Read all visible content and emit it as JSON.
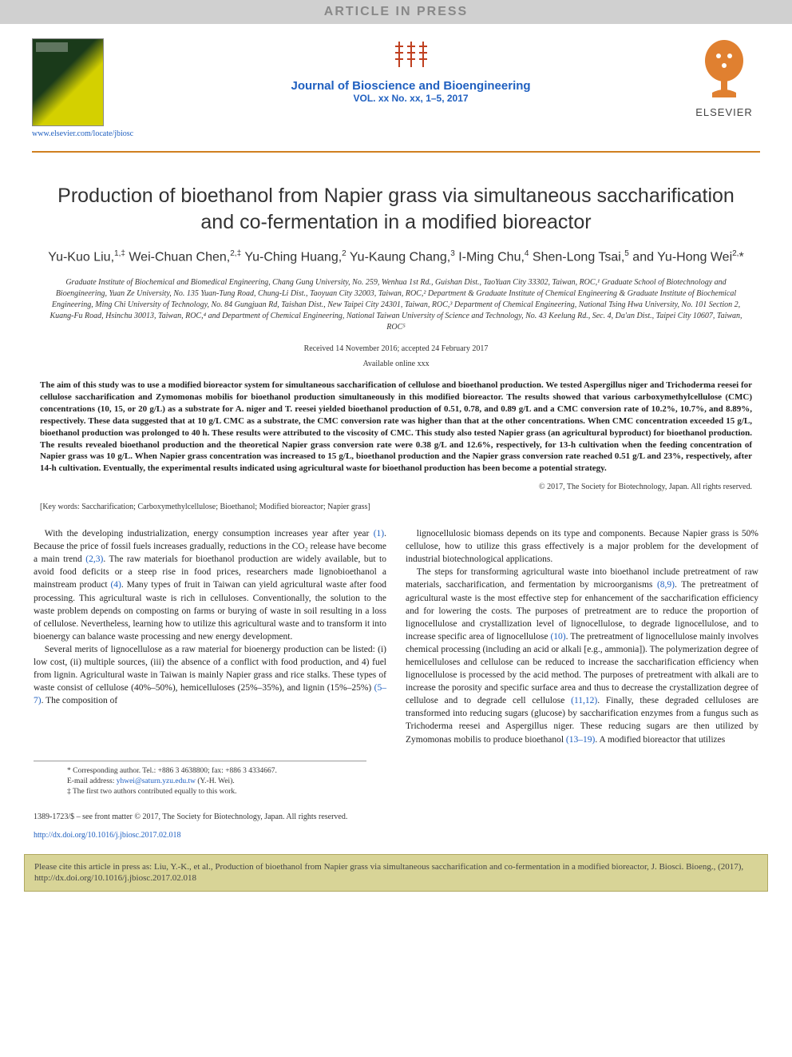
{
  "banner": "ARTICLE IN PRESS",
  "header": {
    "cover_link": "www.elsevier.com/locate/jbiosc",
    "journal_name": "Journal of Bioscience and Bioengineering",
    "journal_vol": "VOL. xx No. xx, 1–5, 2017",
    "publisher": "ELSEVIER"
  },
  "title": "Production of bioethanol from Napier grass via simultaneous saccharification and co-fermentation in a modified bioreactor",
  "authors_html": "Yu-Kuo Liu,<sup>1,‡</sup> Wei-Chuan Chen,<sup>2,‡</sup> Yu-Ching Huang,<sup>2</sup> Yu-Kaung Chang,<sup>3</sup> I-Ming Chu,<sup>4</sup> Shen-Long Tsai,<sup>5</sup> and Yu-Hong Wei<sup>2,</sup>*",
  "affiliations": "Graduate Institute of Biochemical and Biomedical Engineering, Chang Gung University, No. 259, Wenhua 1st Rd., Guishan Dist., TaoYuan City 33302, Taiwan, ROC,¹ Graduate School of Biotechnology and Bioengineering, Yuan Ze University, No. 135 Yuan-Tung Road, Chung-Li Dist., Taoyuan City 32003, Taiwan, ROC,² Department & Graduate Institute of Chemical Engineering & Graduate Institute of Biochemical Engineering, Ming Chi University of Technology, No. 84 Gungjuan Rd, Taishan Dist., New Taipei City 24301, Taiwan, ROC,³ Department of Chemical Engineering, National Tsing Hwa University, No. 101 Section 2, Kuang-Fu Road, Hsinchu 30013, Taiwan, ROC,⁴ and Department of Chemical Engineering, National Taiwan University of Science and Technology, No. 43 Keelung Rd., Sec. 4, Da'an Dist., Taipei City 10607, Taiwan, ROC⁵",
  "dates": {
    "received": "Received 14 November 2016; accepted 24 February 2017",
    "available": "Available online xxx"
  },
  "abstract": "The aim of this study was to use a modified bioreactor system for simultaneous saccharification of cellulose and bioethanol production. We tested Aspergillus niger and Trichoderma reesei for cellulose saccharification and Zymomonas mobilis for bioethanol production simultaneously in this modified bioreactor. The results showed that various carboxymethylcellulose (CMC) concentrations (10, 15, or 20 g/L) as a substrate for A. niger and T. reesei yielded bioethanol production of 0.51, 0.78, and 0.89 g/L and a CMC conversion rate of 10.2%, 10.7%, and 8.89%, respectively. These data suggested that at 10 g/L CMC as a substrate, the CMC conversion rate was higher than that at the other concentrations. When CMC concentration exceeded 15 g/L, bioethanol production was prolonged to 40 h. These results were attributed to the viscosity of CMC. This study also tested Napier grass (an agricultural byproduct) for bioethanol production. The results revealed bioethanol production and the theoretical Napier grass conversion rate were 0.38 g/L and 12.6%, respectively, for 13-h cultivation when the feeding concentration of Napier grass was 10 g/L. When Napier grass concentration was increased to 15 g/L, bioethanol production and the Napier grass conversion rate reached 0.51 g/L and 23%, respectively, after 14-h cultivation. Eventually, the experimental results indicated using agricultural waste for bioethanol production has been become a potential strategy.",
  "copyright": "© 2017, The Society for Biotechnology, Japan. All rights reserved.",
  "keywords": "[Key words: Saccharification; Carboxymethylcellulose; Bioethanol; Modified bioreactor; Napier grass]",
  "body": {
    "left": [
      "With the developing industrialization, energy consumption increases year after year (1). Because the price of fossil fuels increases gradually, reductions in the CO₂ release have become a main trend (2,3). The raw materials for bioethanol production are widely available, but to avoid food deficits or a steep rise in food prices, researchers made lignobioethanol a mainstream product (4). Many types of fruit in Taiwan can yield agricultural waste after food processing. This agricultural waste is rich in celluloses. Conventionally, the solution to the waste problem depends on composting on farms or burying of waste in soil resulting in a loss of cellulose. Nevertheless, learning how to utilize this agricultural waste and to transform it into bioenergy can balance waste processing and new energy development.",
      "Several merits of lignocellulose as a raw material for bioenergy production can be listed: (i) low cost, (ii) multiple sources, (iii) the absence of a conflict with food production, and 4) fuel from lignin. Agricultural waste in Taiwan is mainly Napier grass and rice stalks. These types of waste consist of cellulose (40%–50%), hemicelluloses (25%–35%), and lignin (15%–25%) (5–7). The composition of"
    ],
    "right": [
      "lignocellulosic biomass depends on its type and components. Because Napier grass is 50% cellulose, how to utilize this grass effectively is a major problem for the development of industrial biotechnological applications.",
      "The steps for transforming agricultural waste into bioethanol include pretreatment of raw materials, saccharification, and fermentation by microorganisms (8,9). The pretreatment of agricultural waste is the most effective step for enhancement of the saccharification efficiency and for lowering the costs. The purposes of pretreatment are to reduce the proportion of lignocellulose and crystallization level of lignocellulose, to degrade lignocellulose, and to increase specific area of lignocellulose (10). The pretreatment of lignocellulose mainly involves chemical processing (including an acid or alkali [e.g., ammonia]). The polymerization degree of hemicelluloses and cellulose can be reduced to increase the saccharification efficiency when lignocellulose is processed by the acid method. The purposes of pretreatment with alkali are to increase the porosity and specific surface area and thus to decrease the crystallization degree of cellulose and to degrade cell cellulose (11,12). Finally, these degraded celluloses are transformed into reducing sugars (glucose) by saccharification enzymes from a fungus such as Trichoderma reesei and Aspergillus niger. These reducing sugars are then utilized by Zymomonas mobilis to produce bioethanol (13–19). A modified bioreactor that utilizes"
    ]
  },
  "footnotes": {
    "corr": "* Corresponding author. Tel.: +886 3 4638800; fax: +886 3 4334667.",
    "email_label": "E-mail address:",
    "email": "yhwei@saturn.yzu.edu.tw",
    "email_tail": "(Y.-H. Wei).",
    "contrib": "‡ The first two authors contributed equally to this work."
  },
  "footer": {
    "line": "1389-1723/$ – see front matter © 2017, The Society for Biotechnology, Japan. All rights reserved.",
    "doi": "http://dx.doi.org/10.1016/j.jbiosc.2017.02.018"
  },
  "citebox": "Please cite this article in press as: Liu, Y.-K., et al., Production of bioethanol from Napier grass via simultaneous saccharification and co-fermentation in a modified bioreactor, J. Biosci. Bioeng., (2017), http://dx.doi.org/10.1016/j.jbiosc.2017.02.018",
  "colors": {
    "link": "#2060c0",
    "rule": "#d08020",
    "citebox_bg": "#d8d497",
    "banner_bg": "#d0d0d0"
  }
}
